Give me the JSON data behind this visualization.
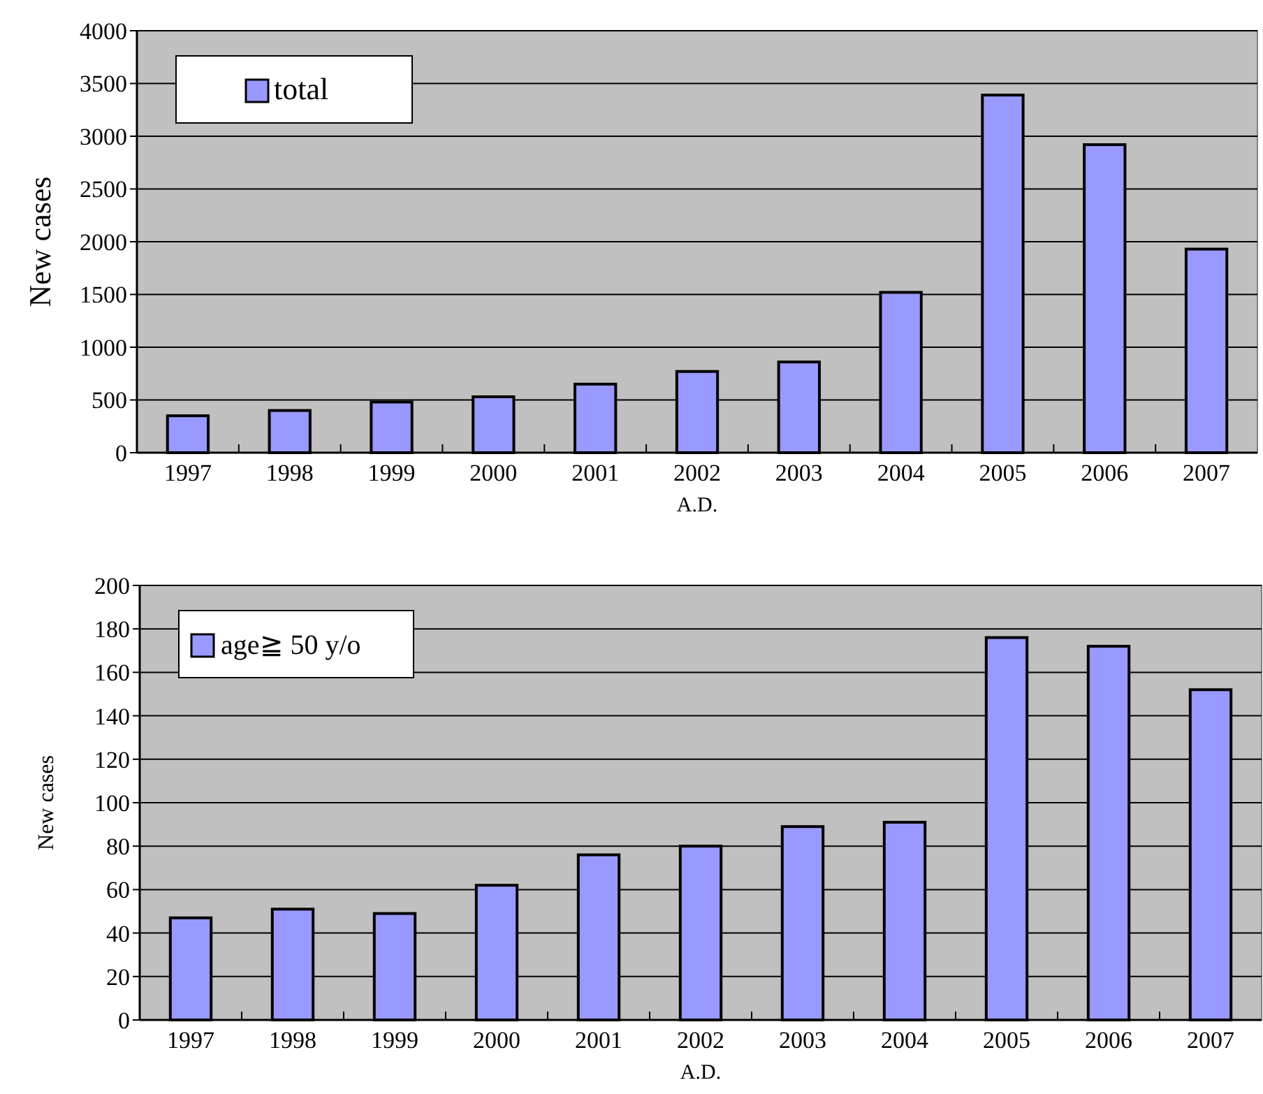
{
  "chart_data": [
    {
      "type": "bar",
      "xlabel": "A.D.",
      "ylabel": "New cases",
      "categories": [
        "1997",
        "1998",
        "1999",
        "2000",
        "2001",
        "2002",
        "2003",
        "2004",
        "2005",
        "2006",
        "2007"
      ],
      "series": [
        {
          "name": "total",
          "color": "#9999ff",
          "values": [
            350,
            400,
            480,
            530,
            650,
            770,
            860,
            1520,
            3390,
            2920,
            1930
          ]
        }
      ],
      "ylim": [
        0,
        4000
      ],
      "yticks": [
        0,
        500,
        1000,
        1500,
        2000,
        2500,
        3000,
        3500,
        4000
      ],
      "grid": "y",
      "legend": "top left"
    },
    {
      "type": "bar",
      "xlabel": "A.D.",
      "ylabel": "New cases",
      "categories": [
        "1997",
        "1998",
        "1999",
        "2000",
        "2001",
        "2002",
        "2003",
        "2004",
        "2005",
        "2006",
        "2007"
      ],
      "series": [
        {
          "name": "age≧ 50 y/o",
          "color": "#9999ff",
          "values": [
            47,
            51,
            49,
            62,
            76,
            80,
            89,
            91,
            176,
            172,
            152
          ]
        }
      ],
      "ylim": [
        0,
        200
      ],
      "yticks": [
        0,
        20,
        40,
        60,
        80,
        100,
        120,
        140,
        160,
        180,
        200
      ],
      "grid": "y",
      "legend": "top left"
    }
  ]
}
